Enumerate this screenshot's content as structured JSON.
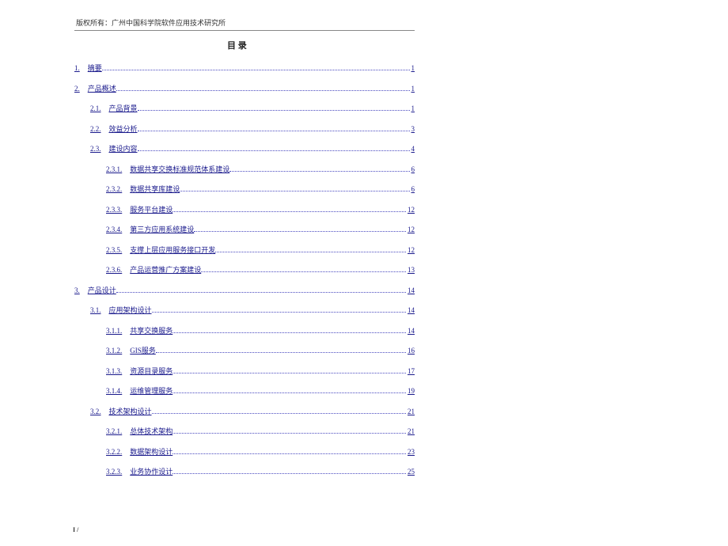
{
  "copyright": "版权所有：广州中国科学院软件应用技术研究所",
  "toc_title": "目 录",
  "footer": "I /",
  "link_color": "#1a1a8c",
  "leader_color": "#4a4ac0",
  "entries": [
    {
      "num": "1.",
      "label": "摘要",
      "page": "1",
      "level": 0
    },
    {
      "num": "2.",
      "label": "产品概述",
      "page": "1",
      "level": 0
    },
    {
      "num": "2.1.",
      "label": "产品背景",
      "page": "1",
      "level": 1
    },
    {
      "num": "2.2.",
      "label": "效益分析",
      "page": "3",
      "level": 1
    },
    {
      "num": "2.3.",
      "label": "建设内容",
      "page": "4",
      "level": 1
    },
    {
      "num": "2.3.1.",
      "label": "数据共享交换标准规范体系建设",
      "page": "6",
      "level": 2
    },
    {
      "num": "2.3.2.",
      "label": "数据共享库建设",
      "page": "6",
      "level": 2
    },
    {
      "num": "2.3.3.",
      "label": "服务平台建设",
      "page": "12",
      "level": 2
    },
    {
      "num": "2.3.4.",
      "label": "第三方应用系统建设",
      "page": "12",
      "level": 2
    },
    {
      "num": "2.3.5.",
      "label": "支撑上层应用服务接口开发",
      "page": "12",
      "level": 2
    },
    {
      "num": "2.3.6.",
      "label": "产品运营推广方案建设",
      "page": "13",
      "level": 2
    },
    {
      "num": "3.",
      "label": "产品设计",
      "page": "14",
      "level": 0
    },
    {
      "num": "3.1.",
      "label": "应用架构设计",
      "page": "14",
      "level": 1
    },
    {
      "num": "3.1.1.",
      "label": "共享交换服务",
      "page": "14",
      "level": 2
    },
    {
      "num": "3.1.2.",
      "label": "GIS服务",
      "page": "16",
      "level": 2
    },
    {
      "num": "3.1.3.",
      "label": "资源目录服务",
      "page": "17",
      "level": 2
    },
    {
      "num": "3.1.4.",
      "label": "运维管理服务",
      "page": "19",
      "level": 2
    },
    {
      "num": "3.2.",
      "label": "技术架构设计",
      "page": "21",
      "level": 1
    },
    {
      "num": "3.2.1.",
      "label": "总体技术架构",
      "page": "21",
      "level": 2
    },
    {
      "num": "3.2.2.",
      "label": "数据架构设计",
      "page": "23",
      "level": 2
    },
    {
      "num": "3.2.3.",
      "label": "业务协作设计",
      "page": "25",
      "level": 2
    }
  ]
}
